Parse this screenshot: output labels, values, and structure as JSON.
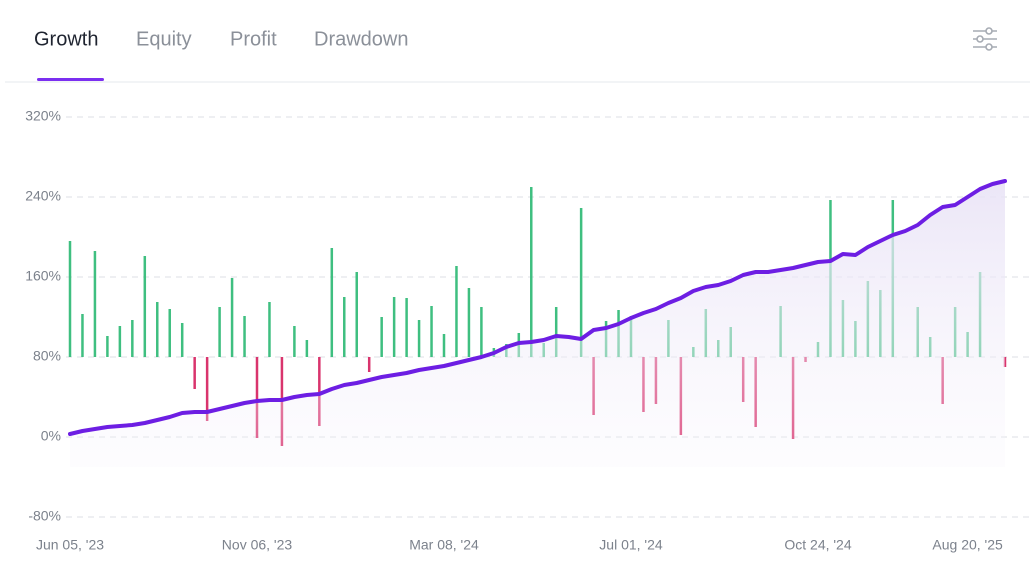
{
  "tabs": {
    "items": [
      "Growth",
      "Equity",
      "Profit",
      "Drawdown"
    ],
    "active": 0
  },
  "chart_data": {
    "type": "combo",
    "categories": [
      "Jun 05, '23",
      null,
      null,
      null,
      null,
      null,
      null,
      null,
      null,
      null,
      null,
      null,
      null,
      null,
      null,
      "Nov 06, '23",
      null,
      null,
      null,
      null,
      null,
      null,
      null,
      null,
      null,
      null,
      null,
      null,
      null,
      null,
      "Mar 08, '24",
      null,
      null,
      null,
      null,
      null,
      null,
      null,
      null,
      null,
      null,
      null,
      null,
      null,
      null,
      "Jul 01, '24",
      null,
      null,
      null,
      null,
      null,
      null,
      null,
      null,
      null,
      null,
      null,
      null,
      null,
      null,
      "Oct 24, '24",
      null,
      null,
      null,
      null,
      null,
      null,
      null,
      null,
      null,
      null,
      null,
      "Aug 20, '25",
      null,
      null,
      null
    ],
    "ylim": [
      -80,
      320
    ],
    "yticks": [
      {
        "value": -80,
        "label": "-80%"
      },
      {
        "value": 0,
        "label": "0%"
      },
      {
        "value": 80,
        "label": "80%"
      },
      {
        "value": 160,
        "label": "160%"
      },
      {
        "value": 240,
        "label": "240%"
      },
      {
        "value": 320,
        "label": "320%"
      }
    ],
    "y2lim": [
      -8,
      12
    ],
    "grid": true,
    "series": [
      {
        "type": "bar",
        "axis": "y2",
        "color": "#3fbf80",
        "negative_color": "#d9346d",
        "values": [
          5.8,
          2.15,
          5.3,
          1.05,
          1.55,
          1.85,
          5.05,
          2.75,
          2.4,
          1.7,
          -1.6,
          -3.2,
          2.5,
          3.95,
          2.05,
          -4.05,
          2.75,
          -4.45,
          1.55,
          0.85,
          -3.45,
          5.45,
          3.0,
          4.25,
          -0.75,
          2.0,
          3.0,
          2.95,
          1.85,
          2.55,
          1.15,
          4.55,
          3.45,
          2.5,
          0.45,
          0.65,
          1.2,
          8.5,
          0.7,
          2.5,
          0,
          7.45,
          -2.9,
          1.8,
          2.35,
          2.05,
          -2.75,
          -2.35,
          1.85,
          -3.9,
          0.5,
          2.4,
          0.85,
          1.5,
          -2.25,
          -3.5,
          0,
          2.55,
          -4.1,
          -0.25,
          0.75,
          7.85,
          2.85,
          1.8,
          3.8,
          3.35,
          7.85,
          0,
          2.5,
          1.0,
          -2.35,
          2.5,
          1.25,
          4.25,
          0,
          -0.5
        ]
      },
      {
        "type": "line",
        "color": "#6d1ee3",
        "values": [
          3,
          6,
          8,
          10,
          11,
          12,
          14,
          17,
          20,
          24,
          25,
          25,
          28,
          31,
          34,
          36,
          37,
          37,
          40,
          42,
          43,
          48,
          52,
          54,
          57,
          60,
          62,
          64,
          67,
          69,
          71,
          74,
          77,
          80,
          84,
          90,
          94,
          95,
          97,
          101,
          100,
          98,
          107,
          109,
          113,
          119,
          124,
          128,
          134,
          139,
          146,
          150,
          152,
          156,
          162,
          165,
          165,
          167,
          169,
          172,
          175,
          176,
          183,
          182,
          190,
          196,
          202,
          206,
          212,
          222,
          230,
          232,
          240,
          248,
          253,
          256
        ]
      }
    ]
  }
}
